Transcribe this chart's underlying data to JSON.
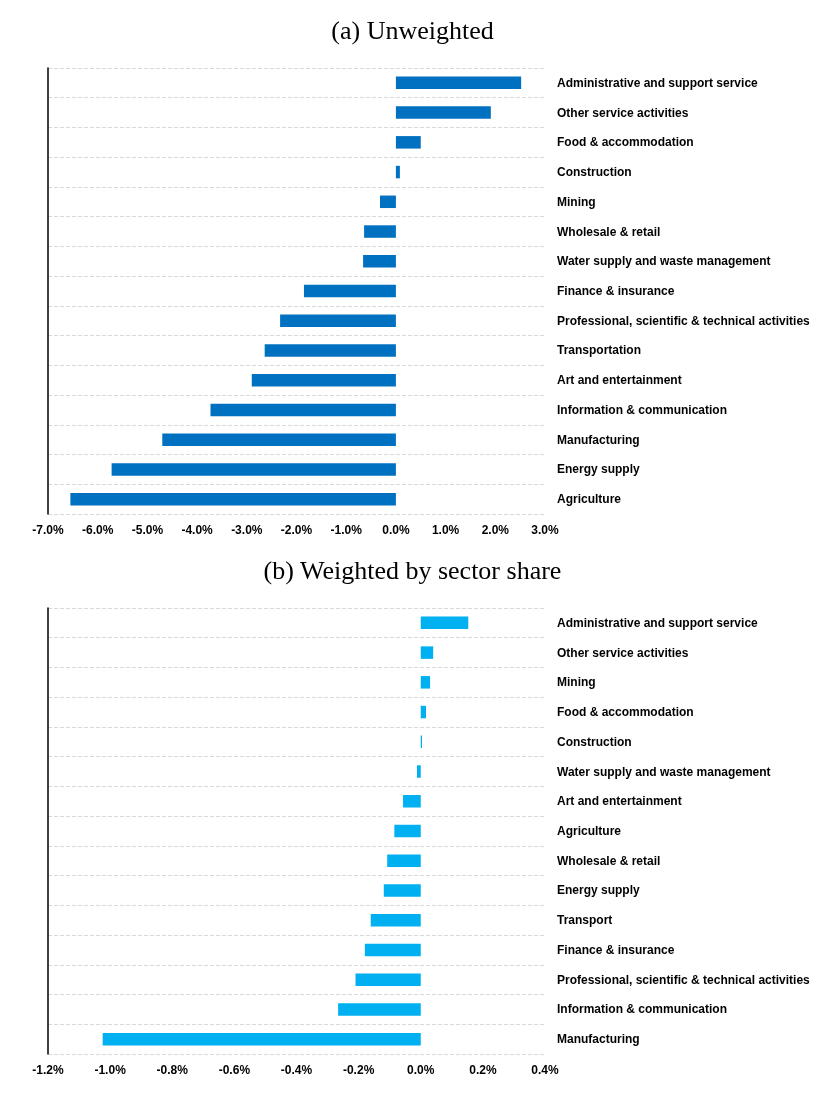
{
  "chart_data": [
    {
      "type": "bar",
      "orientation": "horizontal",
      "title": "(a) Unweighted",
      "categories": [
        "Administrative and support service",
        "Other service activities",
        "Food & accommodation",
        "Construction",
        "Mining",
        "Wholesale & retail",
        "Water supply and waste management",
        "Finance & insurance",
        "Professional, scientific & technical activities",
        "Transportation",
        "Art and entertainment",
        "Information & communication",
        "Manufacturing",
        "Energy supply",
        "Agriculture"
      ],
      "values": [
        2.52,
        1.91,
        0.5,
        0.08,
        -0.32,
        -0.64,
        -0.66,
        -1.85,
        -2.33,
        -2.64,
        -2.9,
        -3.73,
        -4.7,
        -5.72,
        -6.55
      ],
      "color": "#0070c0",
      "xlim": [
        -7,
        3
      ],
      "xticks": [
        {
          "value": -7,
          "label": "-7.0%"
        },
        {
          "value": -6,
          "label": "-6.0%"
        },
        {
          "value": -5,
          "label": "-5.0%"
        },
        {
          "value": -4,
          "label": "-4.0%"
        },
        {
          "value": -3,
          "label": "-3.0%"
        },
        {
          "value": -2,
          "label": "-2.0%"
        },
        {
          "value": -1,
          "label": "-1.0%"
        },
        {
          "value": 0,
          "label": "0.0%"
        },
        {
          "value": 1,
          "label": "1.0%"
        },
        {
          "value": 2,
          "label": "2.0%"
        },
        {
          "value": 3,
          "label": "3.0%"
        }
      ],
      "grid": "y"
    },
    {
      "type": "bar",
      "orientation": "horizontal",
      "title": "(b) Weighted by sector share",
      "categories": [
        "Administrative and support service",
        "Other service activities",
        "Mining",
        "Food & accommodation",
        "Construction",
        "Water supply and waste management",
        "Art and entertainment",
        "Agriculture",
        "Wholesale & retail",
        "Energy supply",
        "Transport",
        "Finance & insurance",
        "Professional, scientific & technical activities",
        "Information & communication",
        "Manufacturing"
      ],
      "values": [
        0.153,
        0.04,
        0.03,
        0.017,
        0.004,
        -0.012,
        -0.057,
        -0.085,
        -0.108,
        -0.119,
        -0.161,
        -0.18,
        -0.21,
        -0.266,
        -1.024
      ],
      "color": "#00b0f0",
      "xlim": [
        -1.2,
        0.4
      ],
      "xticks": [
        {
          "value": -1.2,
          "label": "-1.2%"
        },
        {
          "value": -1,
          "label": "-1.0%"
        },
        {
          "value": -0.8,
          "label": "-0.8%"
        },
        {
          "value": -0.6,
          "label": "-0.6%"
        },
        {
          "value": -0.4,
          "label": "-0.4%"
        },
        {
          "value": -0.2,
          "label": "-0.2%"
        },
        {
          "value": 0,
          "label": "0.0%"
        },
        {
          "value": 0.2,
          "label": "0.2%"
        },
        {
          "value": 0.4,
          "label": "0.4%"
        }
      ],
      "grid": "y"
    }
  ]
}
